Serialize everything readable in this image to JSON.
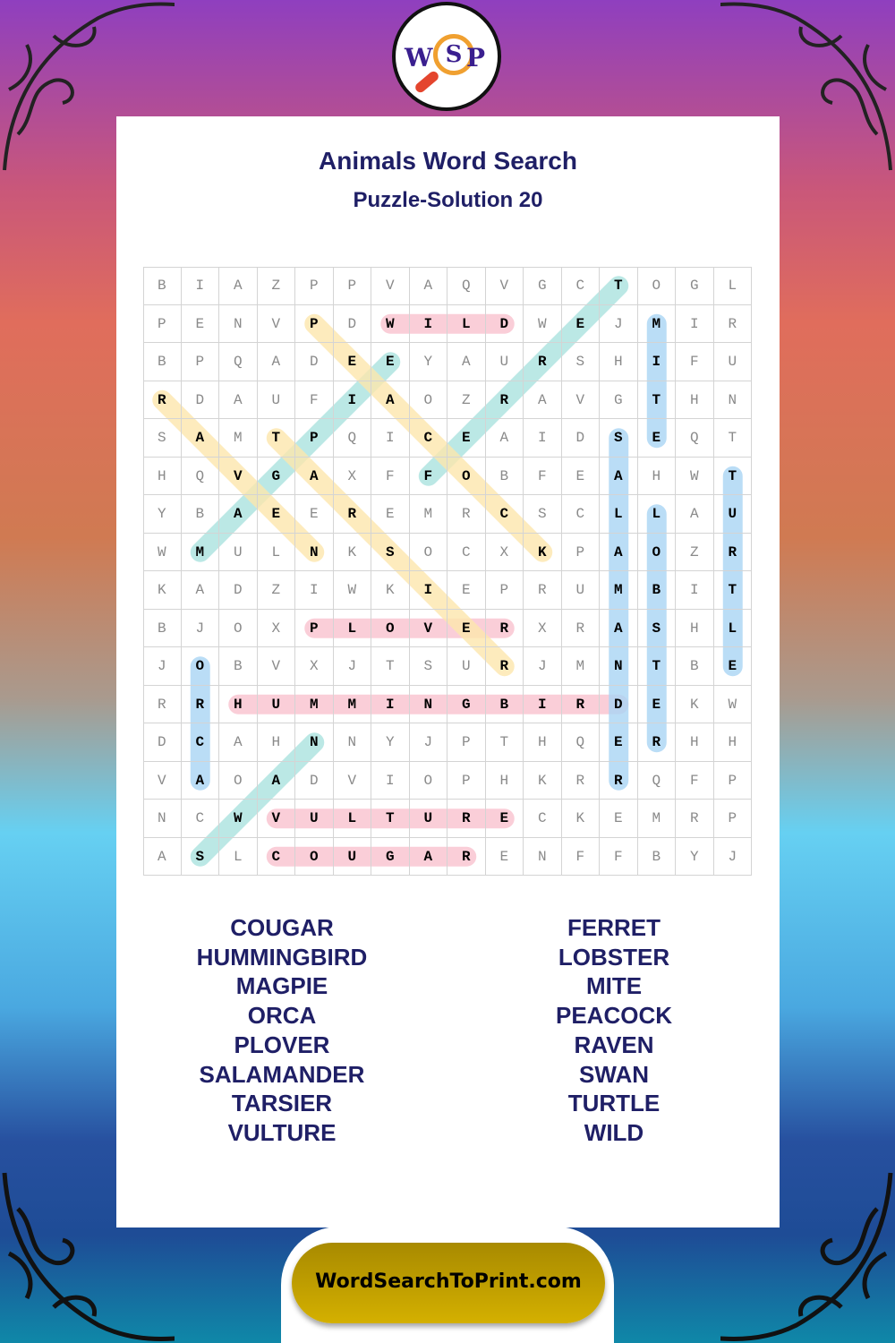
{
  "logo": {
    "letters": [
      "W",
      "S",
      "P"
    ]
  },
  "header": {
    "title": "Animals Word Search",
    "subtitle": "Puzzle-Solution 20"
  },
  "grid": [
    "BIAZPPVAQVGCTOGL",
    "PENVPDWILDWEJMIR",
    "BPQADEEYAURSHIFU",
    "RDAUFIAOZRAVGTHN",
    "SAMTPQICEAIDSEQT",
    "HQVGAXFFOBFEAHWT",
    "YBAEEREMRCSCLLAU",
    "WMULNKSOCXKPAOZR",
    "KADZIWKIEPRUMBIT",
    "BJOXPLOVERXRASHL",
    "JOBVXJTSURJMNTBE",
    "RRHUMMINGBIRDEKW",
    "DCAHNNYJPTHQERHH",
    "VAOADVIOPHKRRQFP",
    "NCWVULTURECKEMRP",
    "ASLCOUGARENFFBYJ"
  ],
  "colors": {
    "pink": "#f9c2cf",
    "blue": "#a9d5f5",
    "teal": "#abe3df",
    "yellow": "#fde7ad",
    "title": "#1f1f66"
  },
  "solutions": [
    {
      "word": "WILD",
      "from": [
        1,
        6
      ],
      "to": [
        1,
        9
      ],
      "color": "pink"
    },
    {
      "word": "PLOVER",
      "from": [
        9,
        4
      ],
      "to": [
        9,
        9
      ],
      "color": "pink"
    },
    {
      "word": "HUMMINGBIRD",
      "from": [
        11,
        2
      ],
      "to": [
        11,
        12
      ],
      "color": "pink"
    },
    {
      "word": "VULTURE",
      "from": [
        14,
        3
      ],
      "to": [
        14,
        9
      ],
      "color": "pink"
    },
    {
      "word": "COUGAR",
      "from": [
        15,
        3
      ],
      "to": [
        15,
        8
      ],
      "color": "pink"
    },
    {
      "word": "ORCA",
      "from": [
        10,
        1
      ],
      "to": [
        13,
        1
      ],
      "color": "blue"
    },
    {
      "word": "SALAMANDER",
      "from": [
        4,
        12
      ],
      "to": [
        13,
        12
      ],
      "color": "blue"
    },
    {
      "word": "MITE",
      "from": [
        1,
        13
      ],
      "to": [
        4,
        13
      ],
      "color": "blue"
    },
    {
      "word": "LOBSTER",
      "from": [
        6,
        13
      ],
      "to": [
        12,
        13
      ],
      "color": "blue"
    },
    {
      "word": "TURTLE",
      "from": [
        5,
        15
      ],
      "to": [
        10,
        15
      ],
      "color": "blue"
    },
    {
      "word": "FERRET",
      "from": [
        5,
        7
      ],
      "to": [
        0,
        12
      ],
      "color": "teal"
    },
    {
      "word": "MAGPIE",
      "from": [
        7,
        1
      ],
      "to": [
        2,
        6
      ],
      "color": "teal"
    },
    {
      "word": "SWAN",
      "from": [
        15,
        1
      ],
      "to": [
        12,
        4
      ],
      "color": "teal"
    },
    {
      "word": "PEACOCK",
      "from": [
        1,
        4
      ],
      "to": [
        7,
        10
      ],
      "color": "yellow"
    },
    {
      "word": "RAVEN",
      "from": [
        3,
        0
      ],
      "to": [
        7,
        4
      ],
      "color": "yellow"
    },
    {
      "word": "TARSIER",
      "from": [
        4,
        3
      ],
      "to": [
        10,
        9
      ],
      "color": "yellow"
    }
  ],
  "word_list": {
    "left": [
      "COUGAR",
      "HUMMINGBIRD",
      "MAGPIE",
      "ORCA",
      "PLOVER",
      "SALAMANDER",
      "TARSIER",
      "VULTURE"
    ],
    "right": [
      "FERRET",
      "LOBSTER",
      "MITE",
      "PEACOCK",
      "RAVEN",
      "SWAN",
      "TURTLE",
      "WILD"
    ]
  },
  "footer": {
    "site": "WordSearchToPrint.com"
  }
}
